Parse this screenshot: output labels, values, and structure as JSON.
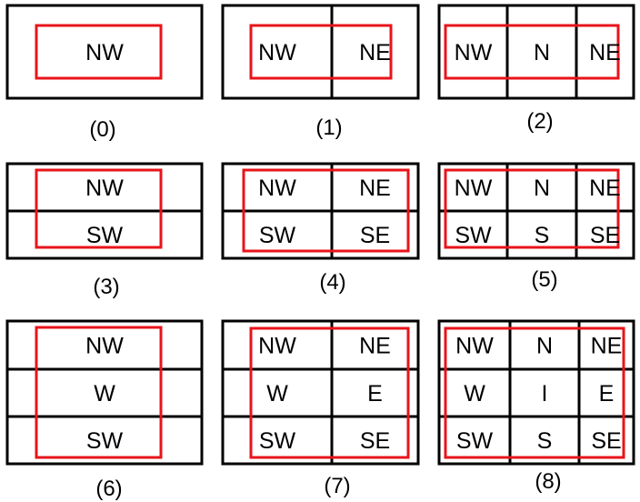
{
  "colors": {
    "grid_line": "#000000",
    "highlight": "#e8141b",
    "background": "#ffffff"
  },
  "panels": [
    {
      "caption": "(0)",
      "columns": [
        "a"
      ],
      "rows": [
        [
          "NW"
        ]
      ]
    },
    {
      "caption": "(1)",
      "columns": [
        "a",
        "b"
      ],
      "rows": [
        [
          "NW",
          "NE"
        ]
      ]
    },
    {
      "caption": "(2)",
      "columns": [
        "a",
        "b",
        "c"
      ],
      "rows": [
        [
          "NW",
          "N",
          "NE"
        ]
      ]
    },
    {
      "caption": "(3)",
      "columns": [
        "a"
      ],
      "rows": [
        [
          "NW"
        ],
        [
          "SW"
        ]
      ]
    },
    {
      "caption": "(4)",
      "columns": [
        "a",
        "b"
      ],
      "rows": [
        [
          "NW",
          "NE"
        ],
        [
          "SW",
          "SE"
        ]
      ]
    },
    {
      "caption": "(5)",
      "columns": [
        "a",
        "b",
        "c"
      ],
      "rows": [
        [
          "NW",
          "N",
          "NE"
        ],
        [
          "SW",
          "S",
          "SE"
        ]
      ]
    },
    {
      "caption": "(6)",
      "columns": [
        "a"
      ],
      "rows": [
        [
          "NW"
        ],
        [
          "W"
        ],
        [
          "SW"
        ]
      ]
    },
    {
      "caption": "(7)",
      "columns": [
        "a",
        "b"
      ],
      "rows": [
        [
          "NW",
          "NE"
        ],
        [
          "W",
          "E"
        ],
        [
          "SW",
          "SE"
        ]
      ]
    },
    {
      "caption": "(8)",
      "columns": [
        "a",
        "b",
        "c"
      ],
      "rows": [
        [
          "NW",
          "N",
          "NE"
        ],
        [
          "W",
          "I",
          "E"
        ],
        [
          "SW",
          "S",
          "SE"
        ]
      ]
    }
  ]
}
